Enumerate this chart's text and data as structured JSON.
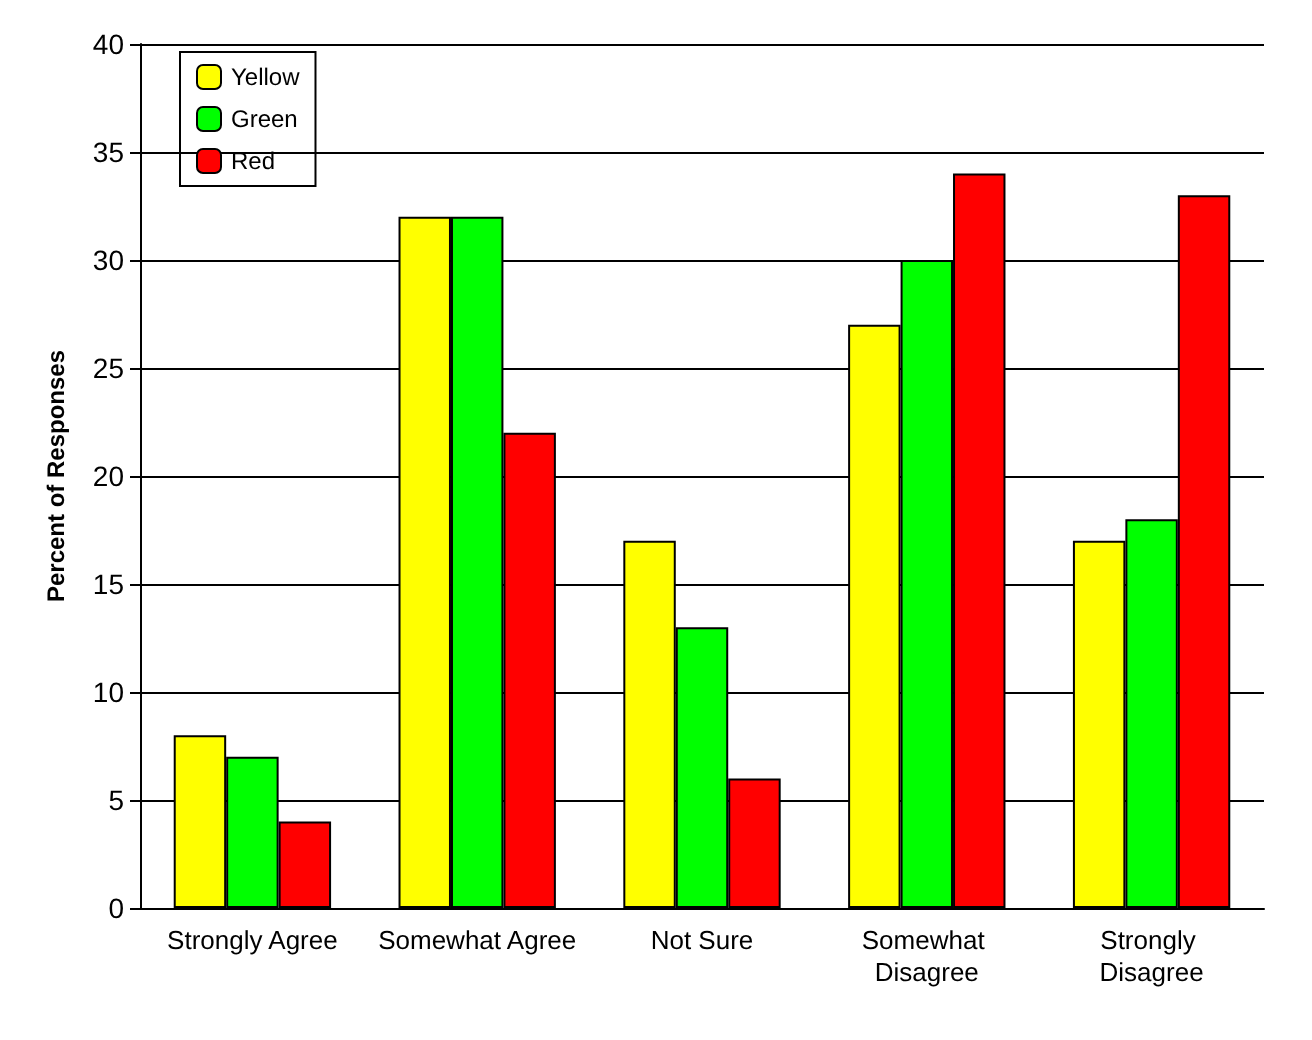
{
  "chart_data": {
    "type": "bar",
    "ylabel": "Percent of Responses",
    "categories": [
      "Strongly Agree",
      "Somewhat Agree",
      "Not Sure",
      "Somewhat Disagree",
      "Strongly Disagree"
    ],
    "series": [
      {
        "name": "Yellow",
        "color": "#ffff00",
        "values": [
          8,
          32,
          17,
          27,
          17
        ]
      },
      {
        "name": "Green",
        "color": "#00ff00",
        "values": [
          7,
          32,
          13,
          30,
          18
        ]
      },
      {
        "name": "Red",
        "color": "#ff0000",
        "values": [
          4,
          22,
          6,
          34,
          33
        ]
      }
    ],
    "ylim": [
      0,
      40
    ],
    "yticks": [
      0,
      5,
      10,
      15,
      20,
      25,
      30,
      35,
      40
    ],
    "grid": "y",
    "legend": "top left"
  }
}
